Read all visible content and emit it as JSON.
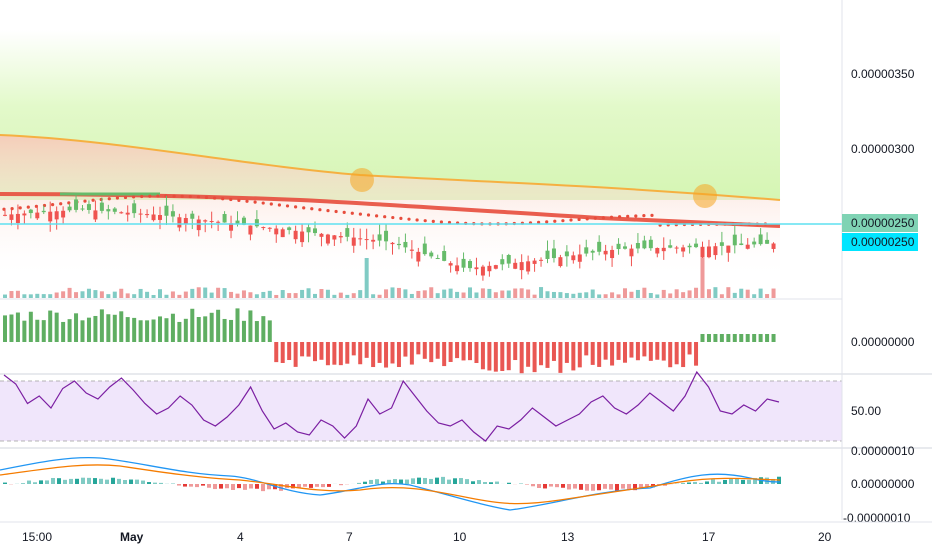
{
  "chart_data": [
    {
      "type": "candlestick",
      "panel": "price",
      "x_tick_labels": [
        "15:00",
        "May",
        "4",
        "7",
        "10",
        "13",
        "17",
        "20"
      ],
      "y_tick_labels": [
        "0.00000350",
        "0.00000300"
      ],
      "ylim": [
        2.18e-06,
        3.85e-06
      ],
      "price_tags": [
        {
          "value": "0.00000250",
          "color": "#26a69a"
        },
        {
          "value": "0.00000250",
          "color": "#00e5ff"
        }
      ],
      "horizontal_line": {
        "value": 2.5e-06,
        "color": "#5ee0f0"
      },
      "candles_sampled": [
        {
          "x": "Apr 29",
          "o": 2.65e-06,
          "c": 2.62e-06
        },
        {
          "x": "May 1",
          "o": 2.68e-06,
          "c": 2.75e-06
        },
        {
          "x": "May 3",
          "o": 2.65e-06,
          "c": 2.7e-06
        },
        {
          "x": "May 5",
          "o": 2.6e-06,
          "c": 2.52e-06
        },
        {
          "x": "May 7",
          "o": 2.55e-06,
          "c": 2.8e-06
        },
        {
          "x": "May 9",
          "o": 2.5e-06,
          "c": 2.43e-06
        },
        {
          "x": "May 11",
          "o": 2.35e-06,
          "c": 2.32e-06
        },
        {
          "x": "May 13",
          "o": 2.4e-06,
          "c": 2.42e-06
        },
        {
          "x": "May 15",
          "o": 2.46e-06,
          "c": 2.48e-06
        },
        {
          "x": "May 17",
          "o": 2.47e-06,
          "c": 2.68e-06
        },
        {
          "x": "May 19",
          "o": 2.49e-06,
          "c": 2.5e-06
        }
      ],
      "colors": {
        "up": "#66bb6a",
        "down": "#ef5350",
        "ma_upper": "#f5b041",
        "ma_mid": "#e74c3c"
      }
    },
    {
      "type": "bar",
      "panel": "oscillator",
      "y_tick_labels": [
        "0.00000000"
      ]
    },
    {
      "type": "line",
      "panel": "rsi",
      "y_tick_labels": [
        "50.00"
      ],
      "ylim": [
        0,
        100
      ],
      "band": [
        30,
        70
      ],
      "values": [
        74,
        68,
        55,
        60,
        52,
        65,
        70,
        62,
        58,
        66,
        72,
        64,
        55,
        48,
        52,
        60,
        54,
        44,
        40,
        46,
        54,
        66,
        50,
        38,
        42,
        36,
        34,
        44,
        40,
        32,
        40,
        58,
        48,
        52,
        70,
        60,
        50,
        42,
        40,
        44,
        36,
        30,
        40,
        38,
        44,
        52,
        46,
        40,
        44,
        48,
        56,
        60,
        52,
        48,
        54,
        62,
        56,
        50,
        60,
        76,
        66,
        50,
        48,
        54,
        50,
        58,
        56
      ]
    },
    {
      "type": "line",
      "panel": "macd",
      "y_tick_labels": [
        "0.00000010",
        "0.00000000",
        "-0.00000010"
      ],
      "ylim": [
        -1.2e-07,
        1.2e-07
      ]
    }
  ]
}
